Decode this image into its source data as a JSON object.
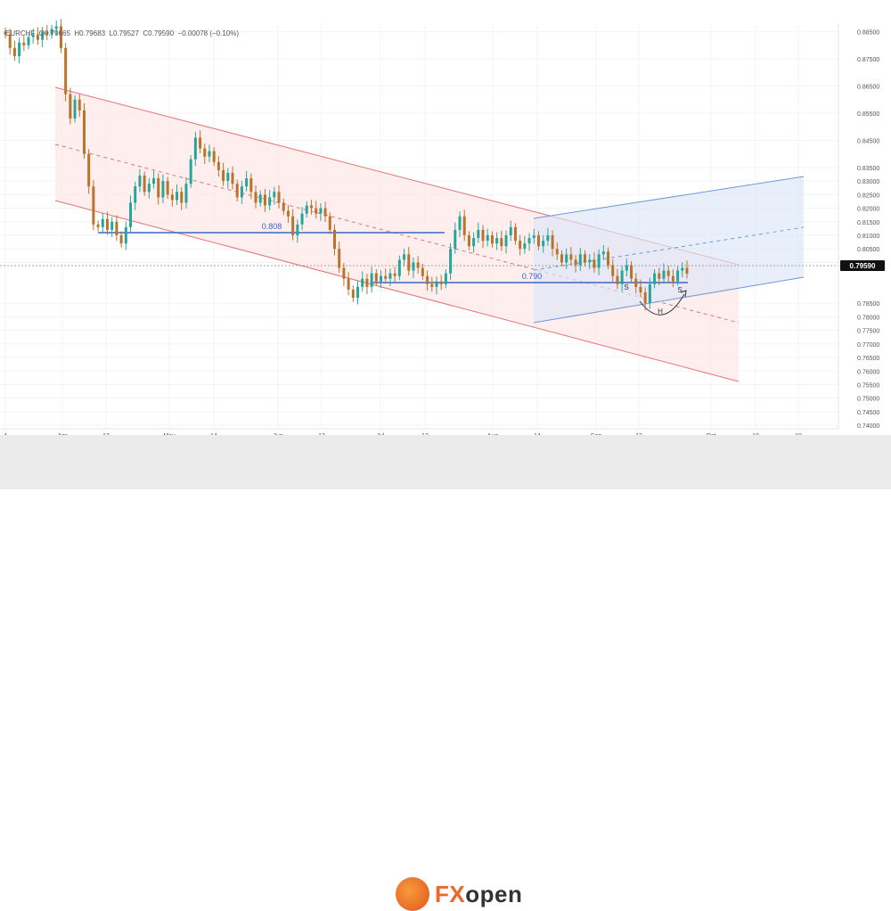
{
  "symbol": "EURCHF",
  "ohlc": {
    "o": "O0.79665",
    "h": "H0.79683",
    "l": "L0.79527",
    "c": "C0.79590",
    "chg": "−0.00078 (−0.10%)"
  },
  "brand": {
    "fx": "FX",
    "rest": "open"
  },
  "chart_data": {
    "type": "candlestick",
    "y_ticks": [
      "0.88500",
      "0.87500",
      "0.86500",
      "0.85500",
      "0.84500",
      "0.83500",
      "0.83000",
      "0.82500",
      "0.82000",
      "0.81500",
      "0.81000",
      "0.80500",
      "0.80000",
      "0.78500",
      "0.78000",
      "0.77500",
      "0.77000",
      "0.76500",
      "0.76000",
      "0.75500",
      "0.75000",
      "0.74500",
      "0.74000"
    ],
    "x_ticks": [
      "4",
      "Apr",
      "13",
      "May",
      "14",
      "Jun",
      "13",
      "Jul",
      "13",
      "Aug",
      "14",
      "Sep",
      "12",
      "Oct",
      "10",
      "19"
    ],
    "ylim": [
      0.7394,
      0.8865
    ],
    "last_price": "0.79590",
    "levels": [
      {
        "label": "0.808",
        "value": 0.808
      },
      {
        "label": "0.790",
        "value": 0.79
      }
    ],
    "pattern_labels": [
      "S",
      "H",
      "S"
    ],
    "colors": {
      "up": "#26a69a",
      "down": "#b9732a",
      "channel_red": "#e57373",
      "channel_blue": "#6b9bd6",
      "level": "#3a66c4"
    },
    "price_path": [
      [
        0.885,
        0.884
      ],
      [
        0.884,
        0.879
      ],
      [
        0.879,
        0.876
      ],
      [
        0.876,
        0.881
      ],
      [
        0.881,
        0.88
      ],
      [
        0.88,
        0.883
      ],
      [
        0.883,
        0.884
      ],
      [
        0.884,
        0.882
      ],
      [
        0.882,
        0.885
      ],
      [
        0.885,
        0.884
      ],
      [
        0.884,
        0.886
      ],
      [
        0.886,
        0.887
      ],
      [
        0.887,
        0.879
      ],
      [
        0.879,
        0.862
      ],
      [
        0.862,
        0.853
      ],
      [
        0.853,
        0.86
      ],
      [
        0.86,
        0.856
      ],
      [
        0.856,
        0.84
      ],
      [
        0.84,
        0.828
      ],
      [
        0.828,
        0.814
      ],
      [
        0.814,
        0.813
      ],
      [
        0.813,
        0.816
      ],
      [
        0.816,
        0.812
      ],
      [
        0.812,
        0.815
      ],
      [
        0.815,
        0.81
      ],
      [
        0.81,
        0.807
      ],
      [
        0.807,
        0.813
      ],
      [
        0.813,
        0.822
      ],
      [
        0.822,
        0.828
      ],
      [
        0.828,
        0.832
      ],
      [
        0.832,
        0.826
      ],
      [
        0.826,
        0.829
      ],
      [
        0.829,
        0.831
      ],
      [
        0.831,
        0.824
      ],
      [
        0.824,
        0.83
      ],
      [
        0.83,
        0.825
      ],
      [
        0.825,
        0.823
      ],
      [
        0.823,
        0.826
      ],
      [
        0.826,
        0.822
      ],
      [
        0.822,
        0.829
      ],
      [
        0.829,
        0.838
      ],
      [
        0.838,
        0.846
      ],
      [
        0.846,
        0.842
      ],
      [
        0.842,
        0.839
      ],
      [
        0.839,
        0.841
      ],
      [
        0.841,
        0.837
      ],
      [
        0.837,
        0.834
      ],
      [
        0.834,
        0.83
      ],
      [
        0.83,
        0.833
      ],
      [
        0.833,
        0.829
      ],
      [
        0.829,
        0.824
      ],
      [
        0.824,
        0.828
      ],
      [
        0.828,
        0.831
      ],
      [
        0.831,
        0.826
      ],
      [
        0.826,
        0.822
      ],
      [
        0.822,
        0.825
      ],
      [
        0.825,
        0.821
      ],
      [
        0.821,
        0.824
      ],
      [
        0.824,
        0.826
      ],
      [
        0.826,
        0.822
      ],
      [
        0.822,
        0.819
      ],
      [
        0.819,
        0.817
      ],
      [
        0.817,
        0.81
      ],
      [
        0.81,
        0.814
      ],
      [
        0.814,
        0.818
      ],
      [
        0.818,
        0.821
      ],
      [
        0.821,
        0.82
      ],
      [
        0.82,
        0.818
      ],
      [
        0.818,
        0.82
      ],
      [
        0.82,
        0.817
      ],
      [
        0.817,
        0.812
      ],
      [
        0.812,
        0.805
      ],
      [
        0.805,
        0.798
      ],
      [
        0.798,
        0.794
      ],
      [
        0.794,
        0.79
      ],
      [
        0.79,
        0.787
      ],
      [
        0.787,
        0.791
      ],
      [
        0.791,
        0.794
      ],
      [
        0.794,
        0.791
      ],
      [
        0.791,
        0.796
      ],
      [
        0.796,
        0.793
      ],
      [
        0.793,
        0.795
      ],
      [
        0.795,
        0.794
      ],
      [
        0.794,
        0.796
      ],
      [
        0.796,
        0.795
      ],
      [
        0.795,
        0.801
      ],
      [
        0.801,
        0.803
      ],
      [
        0.803,
        0.797
      ],
      [
        0.797,
        0.8
      ],
      [
        0.8,
        0.798
      ],
      [
        0.798,
        0.795
      ],
      [
        0.795,
        0.792
      ],
      [
        0.792,
        0.791
      ],
      [
        0.791,
        0.793
      ],
      [
        0.793,
        0.792
      ],
      [
        0.792,
        0.796
      ],
      [
        0.796,
        0.805
      ],
      [
        0.805,
        0.812
      ],
      [
        0.812,
        0.817
      ],
      [
        0.817,
        0.81
      ],
      [
        0.81,
        0.806
      ],
      [
        0.806,
        0.809
      ],
      [
        0.809,
        0.812
      ],
      [
        0.812,
        0.808
      ],
      [
        0.808,
        0.81
      ],
      [
        0.81,
        0.807
      ],
      [
        0.807,
        0.809
      ],
      [
        0.809,
        0.806
      ],
      [
        0.806,
        0.81
      ],
      [
        0.81,
        0.813
      ],
      [
        0.813,
        0.808
      ],
      [
        0.808,
        0.805
      ],
      [
        0.805,
        0.807
      ],
      [
        0.807,
        0.809
      ],
      [
        0.809,
        0.81
      ],
      [
        0.81,
        0.806
      ],
      [
        0.806,
        0.808
      ],
      [
        0.808,
        0.81
      ],
      [
        0.81,
        0.805
      ],
      [
        0.805,
        0.803
      ],
      [
        0.803,
        0.8
      ],
      [
        0.8,
        0.803
      ],
      [
        0.803,
        0.801
      ],
      [
        0.801,
        0.799
      ],
      [
        0.799,
        0.803
      ],
      [
        0.803,
        0.8
      ],
      [
        0.8,
        0.801
      ],
      [
        0.801,
        0.798
      ],
      [
        0.798,
        0.803
      ],
      [
        0.803,
        0.804
      ],
      [
        0.804,
        0.799
      ],
      [
        0.799,
        0.795
      ],
      [
        0.795,
        0.792
      ],
      [
        0.792,
        0.797
      ],
      [
        0.797,
        0.799
      ],
      [
        0.799,
        0.794
      ],
      [
        0.794,
        0.791
      ],
      [
        0.791,
        0.789
      ],
      [
        0.789,
        0.785
      ],
      [
        0.785,
        0.792
      ],
      [
        0.792,
        0.796
      ],
      [
        0.796,
        0.794
      ],
      [
        0.794,
        0.797
      ],
      [
        0.797,
        0.795
      ],
      [
        0.795,
        0.793
      ],
      [
        0.793,
        0.797
      ],
      [
        0.797,
        0.798
      ],
      [
        0.798,
        0.7959
      ]
    ]
  }
}
